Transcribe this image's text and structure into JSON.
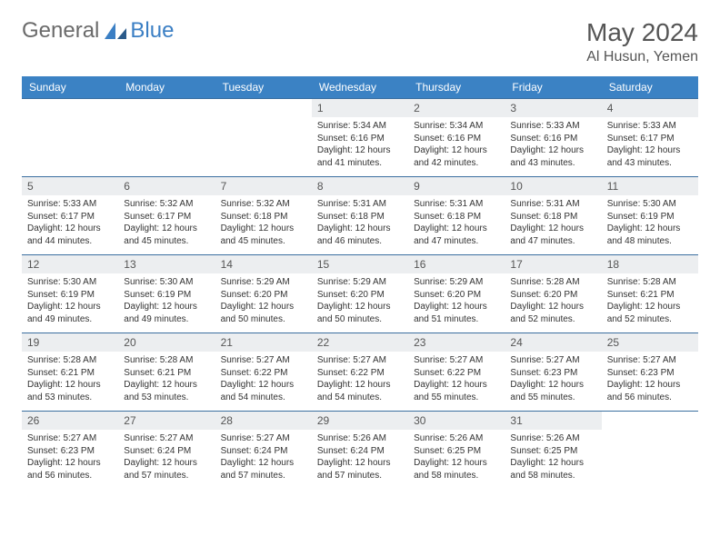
{
  "brand": {
    "text1": "General",
    "text2": "Blue"
  },
  "title": "May 2024",
  "location": "Al Husun, Yemen",
  "colors": {
    "header_bg": "#3b82c4",
    "header_text": "#ffffff",
    "daynum_bg": "#eceef0",
    "row_border": "#3b6fa0",
    "logo_gray": "#6a6a6a",
    "logo_blue": "#3b7fc4"
  },
  "day_headers": [
    "Sunday",
    "Monday",
    "Tuesday",
    "Wednesday",
    "Thursday",
    "Friday",
    "Saturday"
  ],
  "weeks": [
    [
      {
        "n": "",
        "sr": "",
        "ss": "",
        "dl": ""
      },
      {
        "n": "",
        "sr": "",
        "ss": "",
        "dl": ""
      },
      {
        "n": "",
        "sr": "",
        "ss": "",
        "dl": ""
      },
      {
        "n": "1",
        "sr": "Sunrise: 5:34 AM",
        "ss": "Sunset: 6:16 PM",
        "dl": "Daylight: 12 hours and 41 minutes."
      },
      {
        "n": "2",
        "sr": "Sunrise: 5:34 AM",
        "ss": "Sunset: 6:16 PM",
        "dl": "Daylight: 12 hours and 42 minutes."
      },
      {
        "n": "3",
        "sr": "Sunrise: 5:33 AM",
        "ss": "Sunset: 6:16 PM",
        "dl": "Daylight: 12 hours and 43 minutes."
      },
      {
        "n": "4",
        "sr": "Sunrise: 5:33 AM",
        "ss": "Sunset: 6:17 PM",
        "dl": "Daylight: 12 hours and 43 minutes."
      }
    ],
    [
      {
        "n": "5",
        "sr": "Sunrise: 5:33 AM",
        "ss": "Sunset: 6:17 PM",
        "dl": "Daylight: 12 hours and 44 minutes."
      },
      {
        "n": "6",
        "sr": "Sunrise: 5:32 AM",
        "ss": "Sunset: 6:17 PM",
        "dl": "Daylight: 12 hours and 45 minutes."
      },
      {
        "n": "7",
        "sr": "Sunrise: 5:32 AM",
        "ss": "Sunset: 6:18 PM",
        "dl": "Daylight: 12 hours and 45 minutes."
      },
      {
        "n": "8",
        "sr": "Sunrise: 5:31 AM",
        "ss": "Sunset: 6:18 PM",
        "dl": "Daylight: 12 hours and 46 minutes."
      },
      {
        "n": "9",
        "sr": "Sunrise: 5:31 AM",
        "ss": "Sunset: 6:18 PM",
        "dl": "Daylight: 12 hours and 47 minutes."
      },
      {
        "n": "10",
        "sr": "Sunrise: 5:31 AM",
        "ss": "Sunset: 6:18 PM",
        "dl": "Daylight: 12 hours and 47 minutes."
      },
      {
        "n": "11",
        "sr": "Sunrise: 5:30 AM",
        "ss": "Sunset: 6:19 PM",
        "dl": "Daylight: 12 hours and 48 minutes."
      }
    ],
    [
      {
        "n": "12",
        "sr": "Sunrise: 5:30 AM",
        "ss": "Sunset: 6:19 PM",
        "dl": "Daylight: 12 hours and 49 minutes."
      },
      {
        "n": "13",
        "sr": "Sunrise: 5:30 AM",
        "ss": "Sunset: 6:19 PM",
        "dl": "Daylight: 12 hours and 49 minutes."
      },
      {
        "n": "14",
        "sr": "Sunrise: 5:29 AM",
        "ss": "Sunset: 6:20 PM",
        "dl": "Daylight: 12 hours and 50 minutes."
      },
      {
        "n": "15",
        "sr": "Sunrise: 5:29 AM",
        "ss": "Sunset: 6:20 PM",
        "dl": "Daylight: 12 hours and 50 minutes."
      },
      {
        "n": "16",
        "sr": "Sunrise: 5:29 AM",
        "ss": "Sunset: 6:20 PM",
        "dl": "Daylight: 12 hours and 51 minutes."
      },
      {
        "n": "17",
        "sr": "Sunrise: 5:28 AM",
        "ss": "Sunset: 6:20 PM",
        "dl": "Daylight: 12 hours and 52 minutes."
      },
      {
        "n": "18",
        "sr": "Sunrise: 5:28 AM",
        "ss": "Sunset: 6:21 PM",
        "dl": "Daylight: 12 hours and 52 minutes."
      }
    ],
    [
      {
        "n": "19",
        "sr": "Sunrise: 5:28 AM",
        "ss": "Sunset: 6:21 PM",
        "dl": "Daylight: 12 hours and 53 minutes."
      },
      {
        "n": "20",
        "sr": "Sunrise: 5:28 AM",
        "ss": "Sunset: 6:21 PM",
        "dl": "Daylight: 12 hours and 53 minutes."
      },
      {
        "n": "21",
        "sr": "Sunrise: 5:27 AM",
        "ss": "Sunset: 6:22 PM",
        "dl": "Daylight: 12 hours and 54 minutes."
      },
      {
        "n": "22",
        "sr": "Sunrise: 5:27 AM",
        "ss": "Sunset: 6:22 PM",
        "dl": "Daylight: 12 hours and 54 minutes."
      },
      {
        "n": "23",
        "sr": "Sunrise: 5:27 AM",
        "ss": "Sunset: 6:22 PM",
        "dl": "Daylight: 12 hours and 55 minutes."
      },
      {
        "n": "24",
        "sr": "Sunrise: 5:27 AM",
        "ss": "Sunset: 6:23 PM",
        "dl": "Daylight: 12 hours and 55 minutes."
      },
      {
        "n": "25",
        "sr": "Sunrise: 5:27 AM",
        "ss": "Sunset: 6:23 PM",
        "dl": "Daylight: 12 hours and 56 minutes."
      }
    ],
    [
      {
        "n": "26",
        "sr": "Sunrise: 5:27 AM",
        "ss": "Sunset: 6:23 PM",
        "dl": "Daylight: 12 hours and 56 minutes."
      },
      {
        "n": "27",
        "sr": "Sunrise: 5:27 AM",
        "ss": "Sunset: 6:24 PM",
        "dl": "Daylight: 12 hours and 57 minutes."
      },
      {
        "n": "28",
        "sr": "Sunrise: 5:27 AM",
        "ss": "Sunset: 6:24 PM",
        "dl": "Daylight: 12 hours and 57 minutes."
      },
      {
        "n": "29",
        "sr": "Sunrise: 5:26 AM",
        "ss": "Sunset: 6:24 PM",
        "dl": "Daylight: 12 hours and 57 minutes."
      },
      {
        "n": "30",
        "sr": "Sunrise: 5:26 AM",
        "ss": "Sunset: 6:25 PM",
        "dl": "Daylight: 12 hours and 58 minutes."
      },
      {
        "n": "31",
        "sr": "Sunrise: 5:26 AM",
        "ss": "Sunset: 6:25 PM",
        "dl": "Daylight: 12 hours and 58 minutes."
      },
      {
        "n": "",
        "sr": "",
        "ss": "",
        "dl": ""
      }
    ]
  ]
}
